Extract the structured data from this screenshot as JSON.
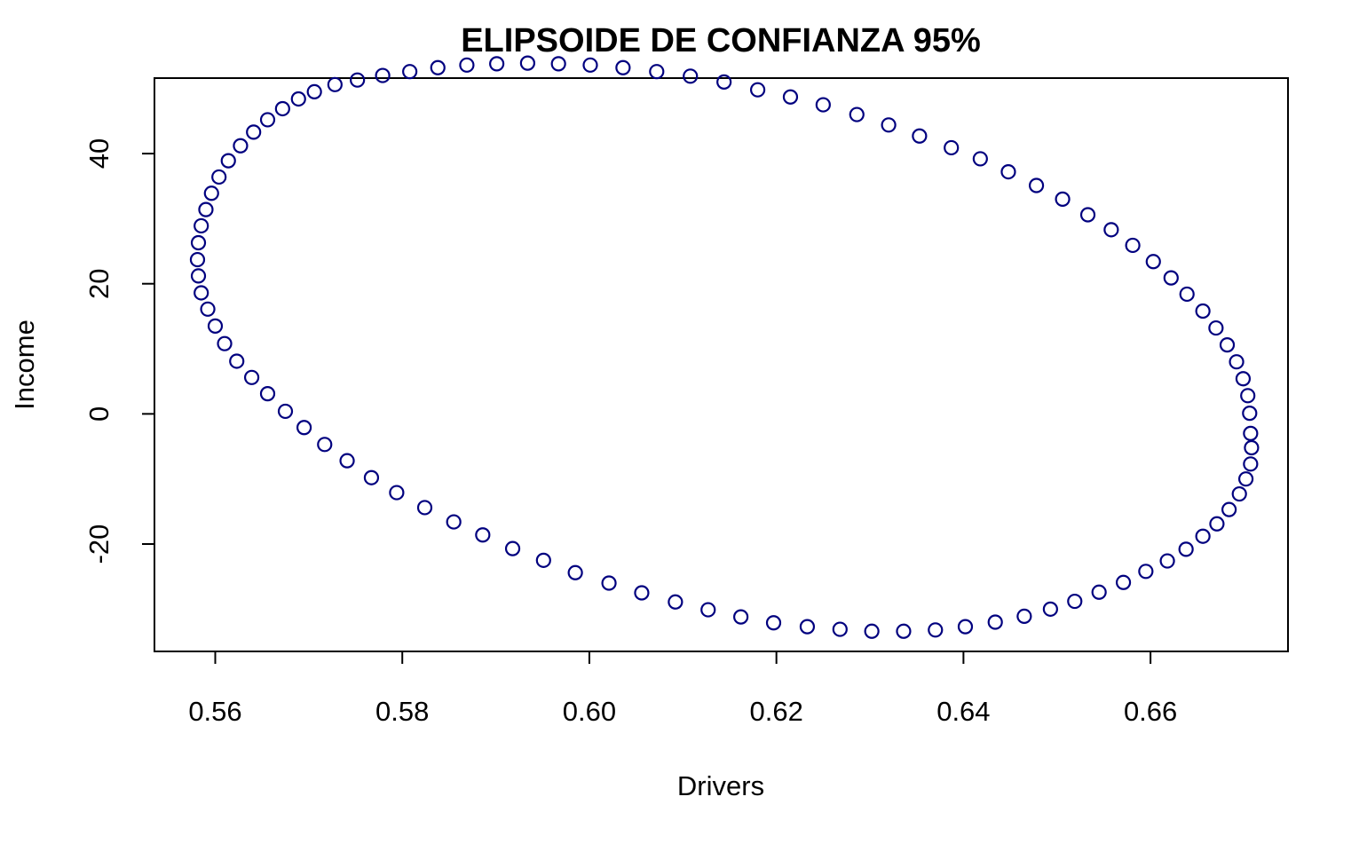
{
  "chart_data": {
    "type": "scatter",
    "title": "ELIPSOIDE DE CONFIANZA 95%",
    "xlabel": "Drivers",
    "ylabel": "Income",
    "xlim": [
      0.5535,
      0.6747
    ],
    "ylim": [
      -36.5,
      51.6
    ],
    "x_ticks": [
      0.56,
      0.58,
      0.6,
      0.62,
      0.64,
      0.66
    ],
    "x_tick_labels": [
      "0.56",
      "0.58",
      "0.60",
      "0.62",
      "0.64",
      "0.66"
    ],
    "y_ticks": [
      -20,
      0,
      20,
      40
    ],
    "y_tick_labels": [
      "-20",
      "0",
      "20",
      "40"
    ],
    "grid": false,
    "marker": "open-circle",
    "point_color": "#00007F",
    "series": [
      {
        "points": [
          [
            0.6707,
            -3.0
          ],
          [
            0.6708,
            -5.2
          ],
          [
            0.6707,
            -7.7
          ],
          [
            0.6702,
            -10.0
          ],
          [
            0.6695,
            -12.3
          ],
          [
            0.6684,
            -14.7
          ],
          [
            0.6671,
            -16.9
          ],
          [
            0.6656,
            -18.8
          ],
          [
            0.6638,
            -20.8
          ],
          [
            0.6618,
            -22.6
          ],
          [
            0.6595,
            -24.2
          ],
          [
            0.6571,
            -25.9
          ],
          [
            0.6545,
            -27.4
          ],
          [
            0.6519,
            -28.8
          ],
          [
            0.6493,
            -30.0
          ],
          [
            0.6465,
            -31.1
          ],
          [
            0.6434,
            -32.0
          ],
          [
            0.6402,
            -32.7
          ],
          [
            0.637,
            -33.2
          ],
          [
            0.6336,
            -33.4
          ],
          [
            0.6302,
            -33.4
          ],
          [
            0.6268,
            -33.1
          ],
          [
            0.6233,
            -32.7
          ],
          [
            0.6197,
            -32.1
          ],
          [
            0.6162,
            -31.2
          ],
          [
            0.6127,
            -30.1
          ],
          [
            0.6092,
            -28.9
          ],
          [
            0.6056,
            -27.5
          ],
          [
            0.6021,
            -26.0
          ],
          [
            0.5985,
            -24.4
          ],
          [
            0.5951,
            -22.5
          ],
          [
            0.5918,
            -20.7
          ],
          [
            0.5886,
            -18.6
          ],
          [
            0.5855,
            -16.6
          ],
          [
            0.5824,
            -14.4
          ],
          [
            0.5794,
            -12.1
          ],
          [
            0.5767,
            -9.8
          ],
          [
            0.5741,
            -7.2
          ],
          [
            0.5717,
            -4.7
          ],
          [
            0.5695,
            -2.1
          ],
          [
            0.5675,
            0.4
          ],
          [
            0.5656,
            3.1
          ],
          [
            0.5639,
            5.6
          ],
          [
            0.5623,
            8.1
          ],
          [
            0.561,
            10.8
          ],
          [
            0.56,
            13.5
          ],
          [
            0.5592,
            16.1
          ],
          [
            0.5585,
            18.6
          ],
          [
            0.5582,
            21.2
          ],
          [
            0.5581,
            23.7
          ],
          [
            0.5582,
            26.3
          ],
          [
            0.5585,
            28.9
          ],
          [
            0.559,
            31.4
          ],
          [
            0.5596,
            33.9
          ],
          [
            0.5604,
            36.4
          ],
          [
            0.5614,
            38.9
          ],
          [
            0.5627,
            41.2
          ],
          [
            0.5641,
            43.3
          ],
          [
            0.5656,
            45.2
          ],
          [
            0.5672,
            46.9
          ],
          [
            0.5689,
            48.4
          ],
          [
            0.5706,
            49.5
          ],
          [
            0.5728,
            50.6
          ],
          [
            0.5752,
            51.3
          ],
          [
            0.5779,
            52.0
          ],
          [
            0.5808,
            52.6
          ],
          [
            0.5838,
            53.2
          ],
          [
            0.5869,
            53.6
          ],
          [
            0.5901,
            53.8
          ],
          [
            0.5934,
            53.9
          ],
          [
            0.5967,
            53.8
          ],
          [
            0.6001,
            53.6
          ],
          [
            0.6036,
            53.2
          ],
          [
            0.6072,
            52.6
          ],
          [
            0.6108,
            51.9
          ],
          [
            0.6144,
            51.0
          ],
          [
            0.618,
            49.8
          ],
          [
            0.6215,
            48.7
          ],
          [
            0.625,
            47.5
          ],
          [
            0.6286,
            46.0
          ],
          [
            0.632,
            44.4
          ],
          [
            0.6353,
            42.7
          ],
          [
            0.6387,
            40.9
          ],
          [
            0.6418,
            39.2
          ],
          [
            0.6448,
            37.2
          ],
          [
            0.6478,
            35.1
          ],
          [
            0.6506,
            33.0
          ],
          [
            0.6533,
            30.6
          ],
          [
            0.6558,
            28.3
          ],
          [
            0.6581,
            25.9
          ],
          [
            0.6603,
            23.4
          ],
          [
            0.6622,
            20.9
          ],
          [
            0.6639,
            18.4
          ],
          [
            0.6656,
            15.8
          ],
          [
            0.667,
            13.2
          ],
          [
            0.6682,
            10.6
          ],
          [
            0.6692,
            8.0
          ],
          [
            0.6699,
            5.4
          ],
          [
            0.6704,
            2.8
          ],
          [
            0.6706,
            0.1
          ]
        ]
      }
    ]
  }
}
